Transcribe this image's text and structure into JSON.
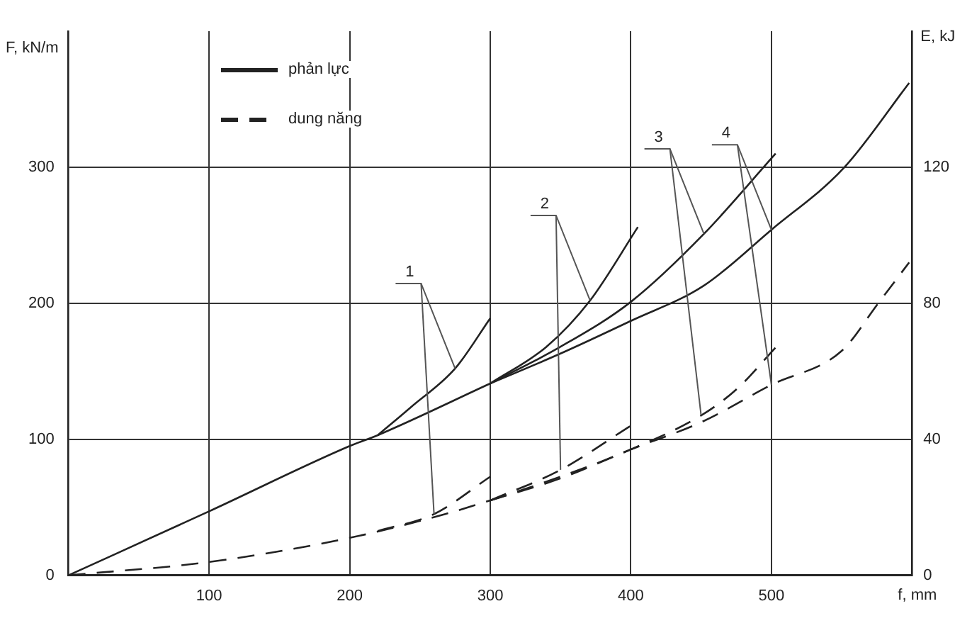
{
  "chart_data": {
    "type": "line",
    "xlabel": "f, mm",
    "ylabel": "F, kN/m",
    "y2label": "E, kJ",
    "xlim": [
      0,
      600
    ],
    "xticks": [
      100,
      200,
      300,
      400,
      500
    ],
    "ylim": [
      0,
      400
    ],
    "yticks": [
      0,
      100,
      200,
      300
    ],
    "y2lim": [
      0,
      160
    ],
    "y2ticks": [
      0,
      40,
      80,
      120
    ],
    "grid": true,
    "legend": "top left",
    "marker": "none",
    "annotations": [
      {
        "text": "1",
        "x": 275,
        "y": 152
      },
      {
        "text": "2",
        "x": 371,
        "y": 202
      },
      {
        "text": "3",
        "x": 452,
        "y": 251
      },
      {
        "text": "4",
        "x": 500,
        "y": 254
      }
    ],
    "series": [
      {
        "name": "phản lực",
        "color": "#222222",
        "line_style": "solid",
        "x": [
          0,
          100,
          200,
          220,
          300
        ],
        "values": [
          0,
          47,
          95,
          103,
          141
        ]
      },
      {
        "color": "#222222",
        "line_style": "solid",
        "x": [
          220,
          244,
          275,
          300
        ],
        "values": [
          103,
          124,
          152,
          189
        ]
      },
      {
        "color": "#222222",
        "line_style": "solid",
        "x": [
          300,
          340,
          371,
          405
        ],
        "values": [
          141,
          168,
          202,
          256
        ]
      },
      {
        "color": "#222222",
        "line_style": "solid",
        "x": [
          300,
          350,
          400,
          452,
          503
        ],
        "values": [
          141,
          168,
          201,
          251,
          310
        ]
      },
      {
        "color": "#222222",
        "line_style": "solid",
        "x": [
          300,
          350,
          400,
          452,
          500,
          552,
          598
        ],
        "values": [
          141,
          163,
          187,
          213,
          254,
          300,
          362
        ]
      },
      {
        "name": "dung năng",
        "color": "#222222",
        "line_style": "dashed",
        "axis": "y2",
        "x": [
          0,
          100,
          200,
          268,
          300
        ],
        "values": [
          0,
          3.9,
          11,
          18,
          22
        ]
      },
      {
        "color": "#222222",
        "line_style": "dashed",
        "axis": "y2",
        "x": [
          220,
          260,
          300
        ],
        "values": [
          13,
          18,
          29
        ]
      },
      {
        "color": "#222222",
        "line_style": "dashed",
        "axis": "y2",
        "x": [
          300,
          350,
          400
        ],
        "values": [
          22,
          31,
          44
        ]
      },
      {
        "color": "#222222",
        "line_style": "dashed",
        "axis": "y2",
        "x": [
          300,
          350,
          400,
          450,
          476,
          503
        ],
        "values": [
          22,
          29,
          37,
          47,
          55,
          67
        ]
      },
      {
        "color": "#222222",
        "line_style": "dashed",
        "axis": "y2",
        "x": [
          300,
          350,
          400,
          450,
          500,
          550,
          576,
          598
        ],
        "values": [
          22,
          28.5,
          37,
          45,
          56,
          66,
          80,
          92
        ]
      }
    ]
  }
}
